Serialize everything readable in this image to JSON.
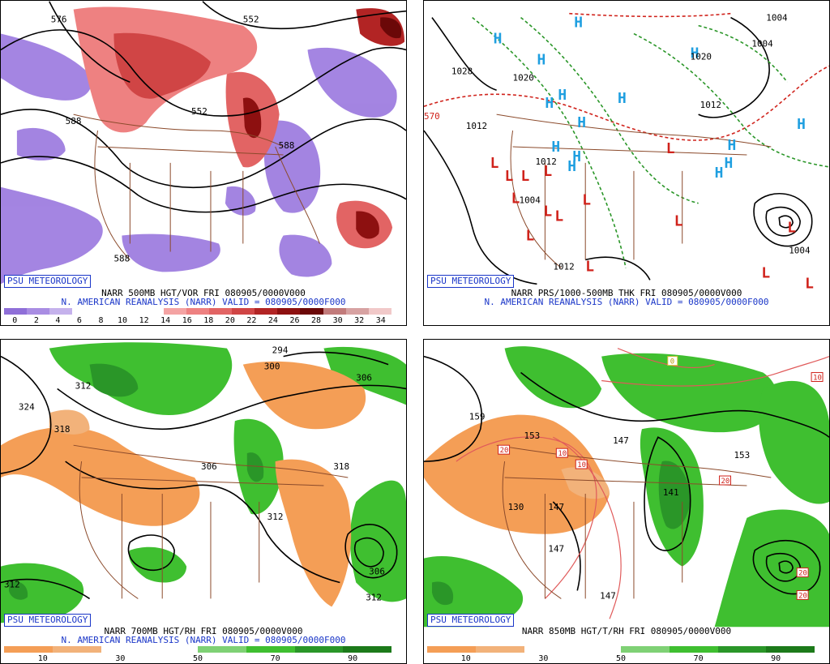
{
  "colors": {
    "vor_neg": "#9f7ee0",
    "vor_scale": [
      "#8f6fd8",
      "#a98de3",
      "#c5b2ec",
      "#ffffff",
      "#ffffff",
      "#ffffff",
      "#ffffff",
      "#f4a3a3",
      "#ee8181",
      "#e26464",
      "#d04545",
      "#b22424",
      "#8d1010",
      "#6b0808",
      "#c27b7b",
      "#d7a2a2",
      "#f1c9c9"
    ],
    "rh_scale": [
      "#f49e56",
      "#f2b27a",
      "#ffffff",
      "#ffffff",
      "#7fd175",
      "#3fbf30",
      "#2a9628",
      "#1c7a1a"
    ],
    "state_lines": "#8b4a2b",
    "h_color": "#1f9fe0",
    "l_color": "#d0221b"
  },
  "panels": {
    "vor": {
      "badge": "PSU METEOROLOGY",
      "title1": "NARR 500MB HGT/VOR FRI 080905/0000V000",
      "title2": "N. AMERICAN REANALYSIS (NARR) VALID = 080905/0000F000",
      "labels": [
        "576",
        "552",
        "588",
        "588",
        "588",
        "552",
        "588"
      ],
      "scale_ticks": [
        "0",
        "2",
        "4",
        "6",
        "8",
        "10",
        "12",
        "14",
        "16",
        "18",
        "20",
        "22",
        "24",
        "26",
        "28",
        "30",
        "32",
        "34"
      ]
    },
    "prs": {
      "badge": "PSU METEOROLOGY",
      "title1": "NARR PRS/1000-500MB THK FRI 080905/0000V000",
      "title2": "N. AMERICAN REANALYSIS (NARR) VALID = 080905/0000F000",
      "labels": [
        "1028",
        "1020",
        "1012",
        "1004",
        "1012",
        "1004",
        "1020",
        "1012",
        "1004",
        "1012",
        "1004",
        "570"
      ]
    },
    "rh700": {
      "badge": "PSU METEOROLOGY",
      "title1": "NARR 700MB HGT/RH FRI 080905/0000V000",
      "title2": "N. AMERICAN REANALYSIS (NARR) VALID = 080905/0000F000",
      "labels": [
        "312",
        "324",
        "318",
        "300",
        "306",
        "306",
        "318",
        "312",
        "306",
        "312",
        "294",
        "312"
      ],
      "scale_ticks": [
        "10",
        "30",
        "50",
        "70",
        "90"
      ]
    },
    "t850": {
      "badge": "PSU METEOROLOGY",
      "title1": "NARR 850MB HGT/T/RH FRI 080905/0000V000",
      "labels": [
        "159",
        "153",
        "147",
        "141",
        "147",
        "147",
        "130",
        "147",
        "153",
        "10",
        "10",
        "20",
        "20",
        "20",
        "10",
        "0",
        "20"
      ],
      "scale_ticks": [
        "10",
        "30",
        "50",
        "70",
        "90"
      ]
    }
  }
}
